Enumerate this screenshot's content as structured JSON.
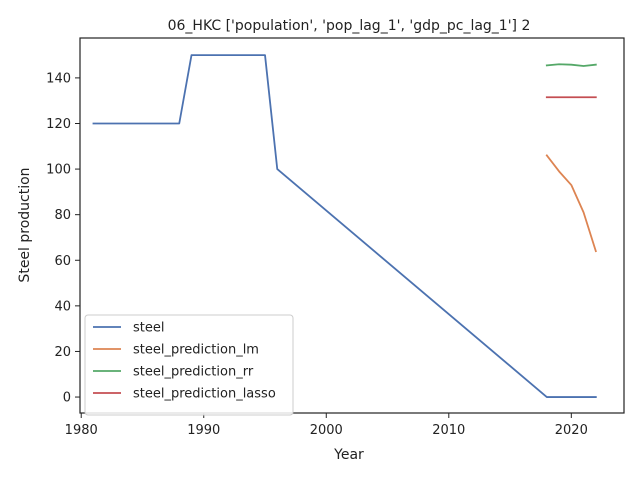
{
  "chart_data": {
    "type": "line",
    "title": "06_HKC ['population', 'pop_lag_1', 'gdp_pc_lag_1'] 2",
    "xlabel": "Year",
    "ylabel": "Steel production",
    "xlim": [
      1979.9,
      2024.3
    ],
    "ylim": [
      -7,
      157.5
    ],
    "xticks": [
      1980,
      1990,
      2000,
      2010,
      2020
    ],
    "yticks": [
      0,
      20,
      40,
      60,
      80,
      100,
      120,
      140
    ],
    "grid": false,
    "legend_position": "lower-left",
    "series": [
      {
        "name": "steel",
        "color": "#4c72b0",
        "x": [
          1981,
          1988,
          1989,
          1995,
          1996,
          2018,
          2019,
          2020,
          2021,
          2022
        ],
        "y": [
          120,
          120,
          150,
          150,
          100,
          0,
          0,
          0,
          0,
          0
        ]
      },
      {
        "name": "steel_prediction_lm",
        "color": "#dd8452",
        "x": [
          2018,
          2019,
          2020,
          2021,
          2022
        ],
        "y": [
          106,
          99,
          93,
          81,
          64
        ]
      },
      {
        "name": "steel_prediction_rr",
        "color": "#55a868",
        "x": [
          2018,
          2019,
          2020,
          2021,
          2022
        ],
        "y": [
          145.5,
          146,
          145.8,
          145.2,
          145.8
        ]
      },
      {
        "name": "steel_prediction_lasso",
        "color": "#c44e52",
        "x": [
          2018,
          2019,
          2020,
          2021,
          2022
        ],
        "y": [
          131.5,
          131.5,
          131.5,
          131.5,
          131.5
        ]
      }
    ]
  }
}
